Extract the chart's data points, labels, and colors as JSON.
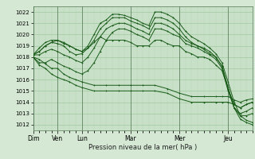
{
  "xlabel": "Pression niveau de la mer( hPa )",
  "ylim": [
    1011.5,
    1022.5
  ],
  "yticks": [
    1012,
    1013,
    1014,
    1015,
    1016,
    1017,
    1018,
    1019,
    1020,
    1021,
    1022
  ],
  "day_labels": [
    "Dim",
    "Ven",
    "Lun",
    "Mar",
    "Mer",
    "Jeu"
  ],
  "day_positions": [
    0,
    24,
    48,
    96,
    144,
    192
  ],
  "total_hours": 216,
  "bg_color": "#d4e8d4",
  "plot_bg_color": "#c8e0c8",
  "grid_color_major": "#a0c8a0",
  "grid_color_minor": "#b8d8b8",
  "line_color": "#1a5c1a",
  "lines": [
    {
      "x": [
        0,
        6,
        12,
        18,
        24,
        30,
        36,
        42,
        48,
        60,
        72,
        84,
        96,
        108,
        120,
        132,
        144,
        156,
        168,
        180,
        186,
        192,
        198,
        204,
        210,
        216
      ],
      "y": [
        1018.0,
        1017.8,
        1017.4,
        1017.0,
        1017.0,
        1016.5,
        1016.2,
        1016.0,
        1015.8,
        1015.5,
        1015.5,
        1015.5,
        1015.5,
        1015.5,
        1015.5,
        1015.2,
        1014.8,
        1014.5,
        1014.5,
        1014.5,
        1014.5,
        1014.5,
        1014.2,
        1014.0,
        1014.2,
        1014.3
      ]
    },
    {
      "x": [
        0,
        6,
        12,
        18,
        24,
        30,
        36,
        42,
        48,
        60,
        72,
        84,
        96,
        108,
        120,
        132,
        144,
        156,
        168,
        180,
        186,
        192,
        198,
        204,
        210,
        216
      ],
      "y": [
        1018.0,
        1017.3,
        1017.0,
        1016.5,
        1016.2,
        1016.0,
        1015.8,
        1015.5,
        1015.3,
        1015.0,
        1015.0,
        1015.0,
        1015.0,
        1015.0,
        1015.0,
        1014.8,
        1014.3,
        1014.0,
        1014.0,
        1014.0,
        1014.0,
        1014.0,
        1013.8,
        1013.5,
        1013.8,
        1014.0
      ]
    },
    {
      "x": [
        0,
        6,
        12,
        18,
        24,
        30,
        36,
        42,
        48,
        54,
        60,
        66,
        72,
        78,
        84,
        90,
        96,
        102,
        108,
        114,
        120,
        126,
        132,
        138,
        144,
        150,
        156,
        162,
        168,
        174,
        180,
        186,
        192,
        198,
        204,
        210,
        216
      ],
      "y": [
        1018.2,
        1018.5,
        1019.0,
        1019.3,
        1019.2,
        1019.0,
        1018.5,
        1018.2,
        1018.3,
        1018.8,
        1019.5,
        1020.5,
        1021.0,
        1021.5,
        1021.5,
        1021.5,
        1021.2,
        1021.0,
        1020.8,
        1020.5,
        1021.5,
        1021.5,
        1021.3,
        1021.0,
        1020.5,
        1019.8,
        1019.3,
        1019.0,
        1018.8,
        1018.5,
        1018.0,
        1017.2,
        1015.3,
        1013.5,
        1012.5,
        1012.2,
        1012.0
      ]
    },
    {
      "x": [
        0,
        6,
        12,
        18,
        24,
        30,
        36,
        42,
        48,
        54,
        60,
        66,
        72,
        78,
        84,
        90,
        96,
        102,
        108,
        114,
        120,
        126,
        132,
        138,
        144,
        150,
        156,
        162,
        168,
        174,
        180,
        186,
        192,
        198,
        204,
        210,
        216
      ],
      "y": [
        1018.2,
        1018.8,
        1019.3,
        1019.5,
        1019.5,
        1019.3,
        1019.0,
        1018.7,
        1018.5,
        1019.0,
        1020.0,
        1021.0,
        1021.3,
        1021.8,
        1021.8,
        1021.7,
        1021.5,
        1021.3,
        1021.0,
        1020.8,
        1022.0,
        1022.0,
        1021.8,
        1021.5,
        1021.0,
        1020.3,
        1019.8,
        1019.5,
        1019.2,
        1018.8,
        1018.3,
        1017.5,
        1015.8,
        1014.0,
        1012.8,
        1012.4,
        1012.2
      ]
    },
    {
      "x": [
        0,
        6,
        12,
        18,
        24,
        30,
        36,
        42,
        48,
        54,
        60,
        66,
        72,
        78,
        84,
        90,
        96,
        102,
        108,
        114,
        120,
        126,
        132,
        138,
        144,
        150,
        156,
        162,
        168,
        174,
        180,
        186,
        192,
        198,
        204,
        210,
        216
      ],
      "y": [
        1018.2,
        1018.2,
        1018.5,
        1018.7,
        1018.5,
        1018.2,
        1018.0,
        1017.7,
        1017.5,
        1018.0,
        1018.8,
        1019.8,
        1020.5,
        1020.8,
        1021.0,
        1021.0,
        1020.8,
        1020.5,
        1020.3,
        1020.0,
        1021.0,
        1021.0,
        1020.8,
        1020.5,
        1020.0,
        1019.5,
        1019.2,
        1019.0,
        1018.7,
        1018.3,
        1018.0,
        1017.2,
        1015.2,
        1013.5,
        1012.8,
        1012.8,
        1013.0
      ]
    },
    {
      "x": [
        0,
        6,
        12,
        18,
        24,
        30,
        36,
        42,
        48,
        54,
        60,
        66,
        72,
        78,
        84,
        90,
        96,
        102,
        108,
        114,
        120,
        126,
        132,
        138,
        144,
        150,
        156,
        162,
        168,
        174,
        180,
        186,
        192,
        198,
        204,
        210,
        216
      ],
      "y": [
        1018.0,
        1017.5,
        1017.5,
        1017.8,
        1017.5,
        1017.2,
        1017.0,
        1016.7,
        1016.5,
        1016.8,
        1017.5,
        1018.5,
        1019.5,
        1020.2,
        1020.5,
        1020.5,
        1020.3,
        1020.0,
        1019.8,
        1019.5,
        1020.5,
        1020.5,
        1020.3,
        1020.0,
        1019.8,
        1019.2,
        1019.0,
        1018.8,
        1018.5,
        1018.2,
        1017.8,
        1017.0,
        1015.0,
        1013.5,
        1013.0,
        1013.2,
        1013.5
      ]
    },
    {
      "x": [
        0,
        6,
        12,
        18,
        24,
        30,
        36,
        42,
        48,
        54,
        60,
        66,
        72,
        78,
        84,
        90,
        96,
        102,
        108,
        114,
        120,
        126,
        132,
        138,
        144,
        150,
        156,
        162,
        168,
        174,
        180,
        186,
        192,
        198,
        204,
        210,
        216
      ],
      "y": [
        1018.2,
        1018.5,
        1019.0,
        1019.3,
        1019.5,
        1019.2,
        1019.0,
        1018.7,
        1018.5,
        1018.8,
        1019.3,
        1019.8,
        1019.5,
        1019.5,
        1019.5,
        1019.5,
        1019.3,
        1019.0,
        1019.0,
        1019.0,
        1019.5,
        1019.5,
        1019.2,
        1019.0,
        1019.0,
        1018.5,
        1018.3,
        1018.0,
        1018.0,
        1017.8,
        1017.3,
        1016.8,
        1015.2,
        1013.8,
        1013.5,
        1013.8,
        1014.0
      ]
    }
  ]
}
